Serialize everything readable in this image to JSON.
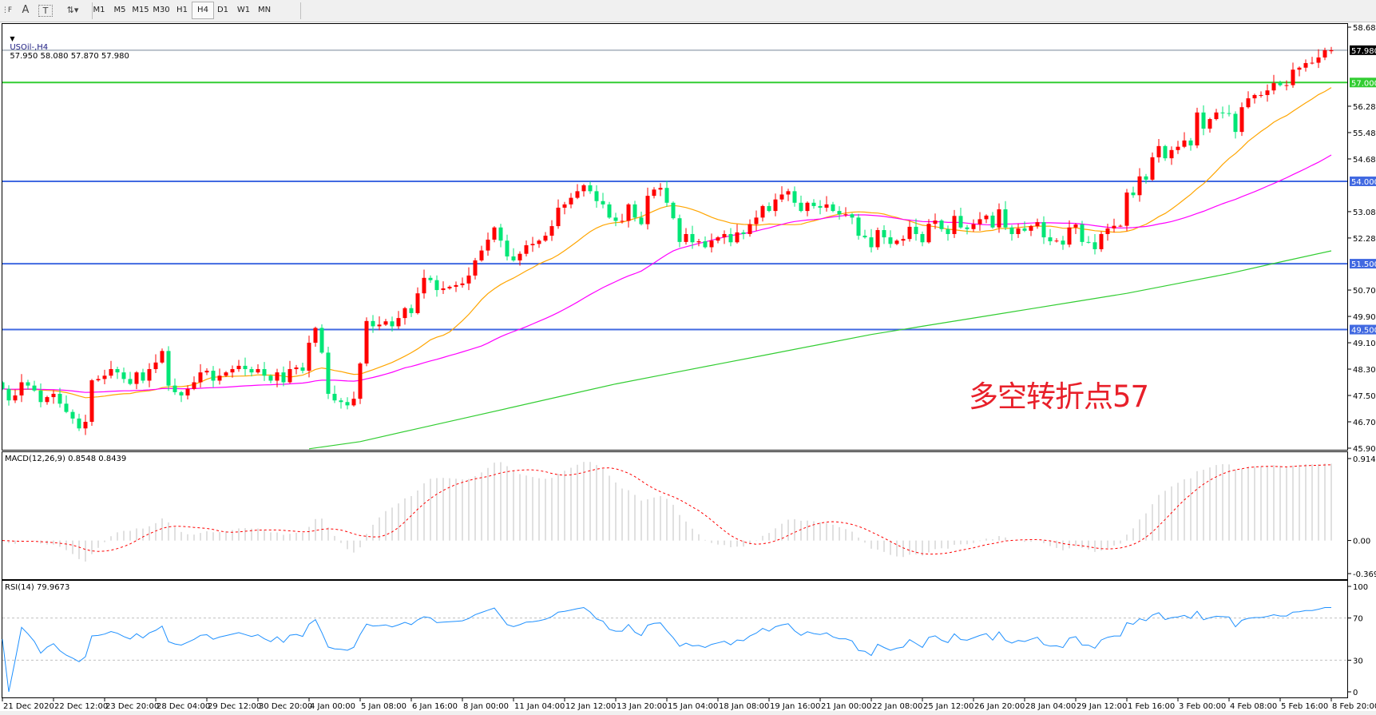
{
  "toolbar": {
    "icons": [
      "fibonacci-fan-icon",
      "text-icon",
      "text-label-icon",
      "arrows-icon"
    ],
    "timeframes": [
      "M1",
      "M5",
      "M15",
      "M30",
      "H1",
      "H4",
      "D1",
      "W1",
      "MN"
    ],
    "active_timeframe": "H4"
  },
  "main_panel": {
    "symbol": "USOil-,H4",
    "ohlc": "57.950 58.080 57.870 57.980",
    "annotation": "多空转折点57"
  },
  "macd_panel": {
    "label": "MACD(12,26,9) 0.8548 0.8439"
  },
  "rsi_panel": {
    "label": "RSI(14) 79.9673"
  },
  "colors": {
    "bull_candle": "#ff0000",
    "bear_candle": "#00e676",
    "ma_fast": "#ffa500",
    "ma_mid": "#ff00ff",
    "ma_slow": "#32cd32",
    "level_line": "#4169e1",
    "pivot_line": "#32cd32",
    "price_line": "#778899",
    "macd_hist": "#c0c0c0",
    "macd_signal": "#ff0000",
    "rsi_line": "#1e90ff",
    "annotation": "#e8202a"
  },
  "chart_data": [
    {
      "type": "candlestick",
      "title": "USOil-,H4",
      "ylim": [
        45.9,
        58.68
      ],
      "y_ticks": [
        "58.680",
        "56.280",
        "55.480",
        "54.680",
        "53.080",
        "52.280",
        "50.700",
        "49.900",
        "49.100",
        "48.300",
        "47.500",
        "46.700",
        "45.900"
      ],
      "x_tick_labels": [
        "21 Dec 2020",
        "22 Dec 12:00",
        "23 Dec 20:00",
        "28 Dec 04:00",
        "29 Dec 12:00",
        "30 Dec 20:00",
        "4 Jan 00:00",
        "5 Jan 08:00",
        "6 Jan 16:00",
        "8 Jan 00:00",
        "11 Jan 04:00",
        "12 Jan 12:00",
        "13 Jan 20:00",
        "15 Jan 04:00",
        "18 Jan 08:00",
        "19 Jan 16:00",
        "21 Jan 00:00",
        "22 Jan 08:00",
        "25 Jan 12:00",
        "26 Jan 20:00",
        "28 Jan 04:00",
        "29 Jan 12:00",
        "1 Feb 16:00",
        "3 Feb 00:00",
        "4 Feb 08:00",
        "5 Feb 16:00",
        "8 Feb 20:00"
      ],
      "bars_per_tick": 8,
      "first_open": 47.9,
      "last_bar": {
        "open": 57.95,
        "high": 58.08,
        "low": 57.87,
        "close": 57.98
      },
      "closes": [
        47.7,
        47.35,
        47.5,
        47.9,
        47.8,
        47.65,
        47.3,
        47.45,
        47.55,
        47.25,
        47.0,
        46.8,
        46.5,
        46.7,
        47.96,
        48.0,
        48.1,
        48.3,
        48.2,
        48.0,
        47.85,
        48.2,
        47.95,
        48.3,
        48.5,
        48.85,
        47.8,
        47.6,
        47.5,
        47.7,
        47.9,
        48.2,
        48.25,
        47.95,
        48.1,
        48.2,
        48.3,
        48.4,
        48.3,
        48.2,
        48.3,
        48.1,
        47.95,
        48.2,
        47.9,
        48.3,
        48.35,
        48.25,
        49.1,
        49.55,
        48.8,
        47.55,
        47.35,
        47.3,
        47.2,
        47.4,
        48.47,
        49.76,
        49.6,
        49.65,
        49.75,
        49.6,
        49.85,
        50.15,
        50.0,
        50.6,
        51.07,
        51.0,
        50.7,
        50.75,
        50.8,
        50.85,
        50.9,
        51.14,
        51.6,
        51.9,
        52.23,
        52.6,
        52.2,
        51.72,
        51.6,
        51.8,
        52.06,
        52.1,
        52.2,
        52.35,
        52.64,
        53.2,
        53.3,
        53.5,
        53.7,
        53.88,
        53.7,
        53.4,
        53.3,
        52.9,
        52.8,
        52.8,
        53.3,
        52.9,
        52.7,
        53.56,
        53.75,
        53.8,
        53.35,
        52.88,
        52.16,
        52.4,
        52.15,
        52.18,
        52.0,
        52.2,
        52.3,
        52.4,
        52.15,
        52.45,
        52.4,
        52.7,
        52.9,
        53.25,
        53.1,
        53.45,
        53.6,
        53.7,
        53.35,
        53.1,
        53.35,
        53.25,
        53.2,
        53.3,
        53.1,
        53.0,
        53.0,
        52.9,
        52.35,
        52.3,
        52.0,
        52.52,
        52.3,
        52.1,
        52.2,
        52.25,
        52.62,
        52.4,
        52.15,
        52.71,
        52.81,
        52.55,
        52.4,
        52.95,
        52.6,
        52.55,
        52.7,
        52.85,
        52.96,
        52.6,
        53.15,
        52.6,
        52.4,
        52.57,
        52.5,
        52.64,
        52.76,
        52.3,
        52.18,
        52.2,
        52.08,
        52.6,
        52.69,
        52.16,
        52.15,
        51.94,
        52.4,
        52.57,
        52.65,
        52.65,
        53.66,
        53.58,
        54.15,
        54.05,
        54.73,
        55.07,
        54.7,
        54.95,
        55.05,
        55.24,
        55.09,
        56.09,
        55.6,
        55.89,
        56.09,
        56.07,
        56.05,
        55.5,
        56.25,
        56.52,
        56.62,
        56.62,
        56.76,
        56.98,
        56.92,
        56.92,
        57.39,
        57.45,
        57.59,
        57.6,
        57.76,
        57.98,
        57.98
      ],
      "moving_averages": [
        {
          "kind": "fast",
          "period": 20
        },
        {
          "kind": "mid",
          "period": 50
        },
        {
          "kind": "slow",
          "values_at_x_ticks": [
            null,
            null,
            null,
            null,
            null,
            null,
            45.88,
            46.1,
            46.45,
            46.8,
            47.15,
            47.5,
            47.85,
            48.15,
            48.45,
            48.75,
            49.05,
            49.35,
            49.6,
            49.85,
            50.1,
            50.35,
            50.6,
            50.9,
            51.2,
            51.55,
            51.89
          ]
        }
      ],
      "levels": [
        {
          "value": 57.98,
          "label": "57.980",
          "kind": "price"
        },
        {
          "value": 57.0,
          "label": "57.000",
          "kind": "pivot"
        },
        {
          "value": 54.0,
          "label": "54.000",
          "kind": "level"
        },
        {
          "value": 51.5,
          "label": "51.500",
          "kind": "level"
        },
        {
          "value": 49.5,
          "label": "49.500",
          "kind": "level"
        }
      ]
    },
    {
      "type": "bar+line",
      "title": "MACD(12,26,9)",
      "ylim": [
        -0.3693,
        0.9143
      ],
      "y_ticks": [
        "0.9143",
        "0.00",
        "-0.3693"
      ],
      "params": [
        12,
        26,
        9
      ],
      "last_values": [
        0.8548,
        0.8439
      ]
    },
    {
      "type": "line",
      "title": "RSI(14)",
      "ylim": [
        0,
        100
      ],
      "y_ticks": [
        "100",
        "70",
        "30",
        "0"
      ],
      "levels": [
        70,
        30
      ],
      "period": 14,
      "last_value": 79.9673
    }
  ]
}
